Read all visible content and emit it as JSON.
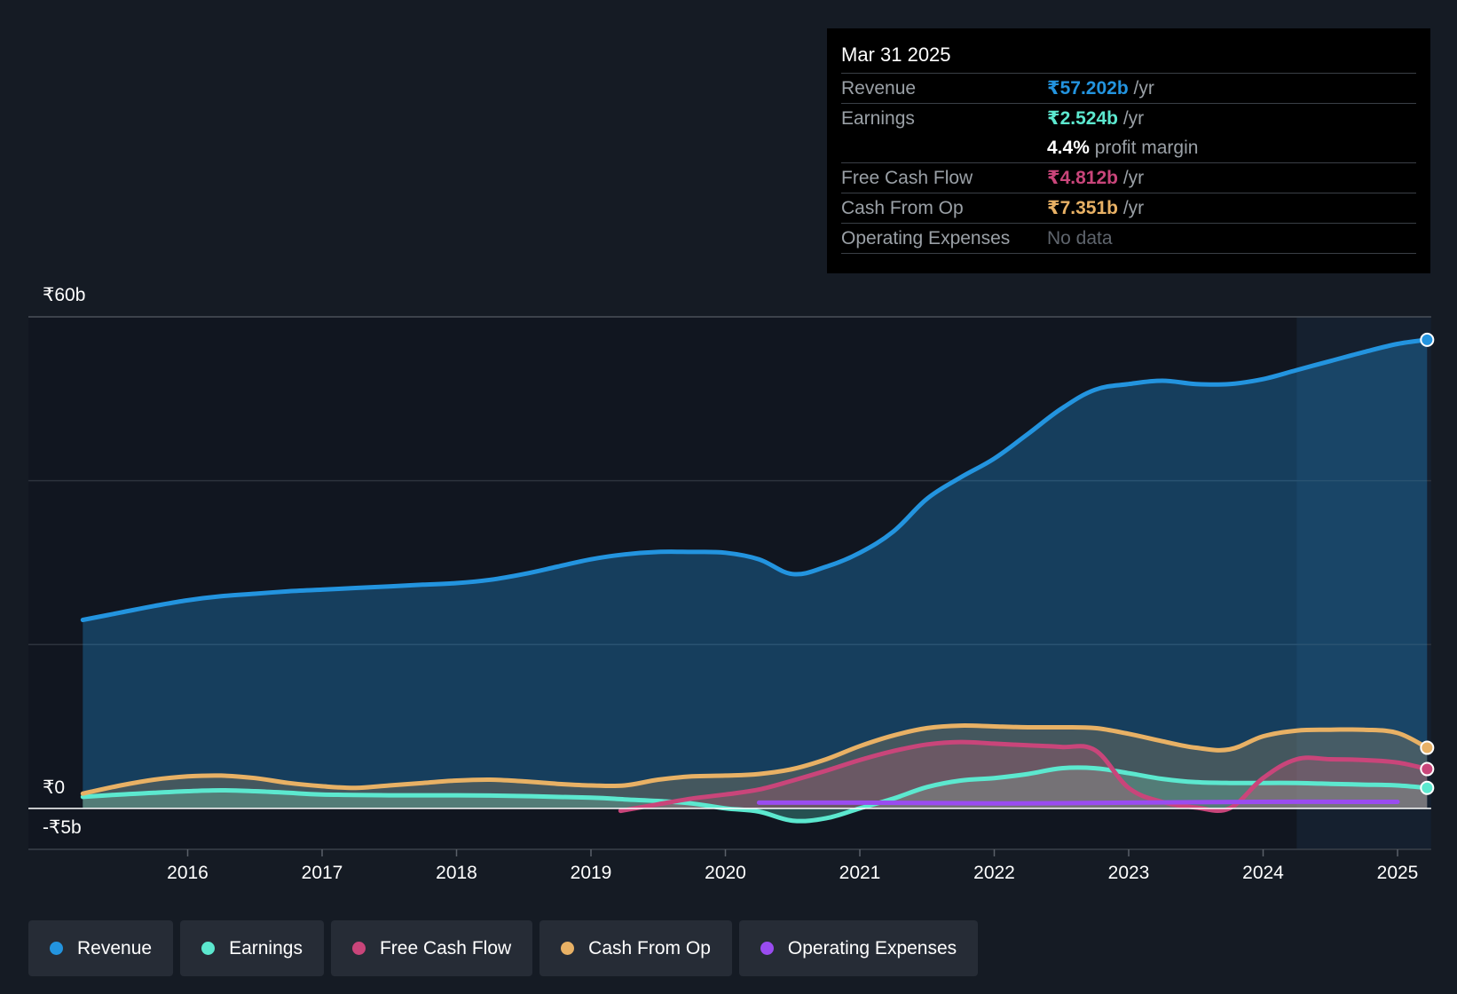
{
  "colors": {
    "revenue": "#2394df",
    "earnings": "#5ce8cf",
    "fcf": "#c9457a",
    "cfo": "#e8b165",
    "opex": "#9a4cf0",
    "grid": "#2d333d",
    "zero": "#ffffff"
  },
  "tooltip": {
    "date": "Mar 31 2025",
    "rows": [
      {
        "label": "Revenue",
        "value": "₹57.202b",
        "unit": "/yr"
      },
      {
        "label": "Earnings",
        "value": "₹2.524b",
        "unit": "/yr",
        "sub_value": "4.4%",
        "sub_text": "profit margin"
      },
      {
        "label": "Free Cash Flow",
        "value": "₹4.812b",
        "unit": "/yr"
      },
      {
        "label": "Cash From Op",
        "value": "₹7.351b",
        "unit": "/yr"
      },
      {
        "label": "Operating Expenses",
        "value": "No data",
        "unit": ""
      }
    ]
  },
  "legend": [
    {
      "label": "Revenue",
      "color": "#2394df"
    },
    {
      "label": "Earnings",
      "color": "#5ce8cf"
    },
    {
      "label": "Free Cash Flow",
      "color": "#c9457a"
    },
    {
      "label": "Cash From Op",
      "color": "#e8b165"
    },
    {
      "label": "Operating Expenses",
      "color": "#9a4cf0"
    }
  ],
  "chart_data": {
    "type": "area",
    "title": "",
    "y_axis_labels": [
      "₹60b",
      "₹0",
      "-₹5b"
    ],
    "ylim": [
      -5,
      60
    ],
    "xlim": [
      2014.8,
      2025.25
    ],
    "highlight_start": 2024.25,
    "x_ticks": [
      {
        "value": 2016,
        "label": "2016"
      },
      {
        "value": 2017,
        "label": "2017"
      },
      {
        "value": 2018,
        "label": "2018"
      },
      {
        "value": 2019,
        "label": "2019"
      },
      {
        "value": 2020,
        "label": "2020"
      },
      {
        "value": 2021,
        "label": "2021"
      },
      {
        "value": 2022,
        "label": "2022"
      },
      {
        "value": 2023,
        "label": "2023"
      },
      {
        "value": 2024,
        "label": "2024"
      },
      {
        "value": 2025,
        "label": "2025"
      }
    ],
    "series": [
      {
        "name": "Revenue",
        "key": "revenue",
        "fill": true,
        "x": [
          2015.22,
          2015.5,
          2015.75,
          2016.0,
          2016.25,
          2016.5,
          2016.75,
          2017.0,
          2017.25,
          2017.5,
          2017.75,
          2018.0,
          2018.25,
          2018.5,
          2018.75,
          2019.0,
          2019.25,
          2019.5,
          2019.75,
          2020.0,
          2020.25,
          2020.5,
          2020.75,
          2021.0,
          2021.25,
          2021.5,
          2021.75,
          2022.0,
          2022.25,
          2022.5,
          2022.75,
          2023.0,
          2023.25,
          2023.5,
          2023.75,
          2024.0,
          2024.25,
          2024.5,
          2024.75,
          2025.0,
          2025.22
        ],
        "y": [
          23.0,
          23.9,
          24.7,
          25.4,
          25.9,
          26.2,
          26.5,
          26.7,
          26.9,
          27.1,
          27.3,
          27.5,
          27.9,
          28.6,
          29.5,
          30.4,
          31.0,
          31.3,
          31.3,
          31.2,
          30.4,
          28.6,
          29.5,
          31.2,
          33.8,
          37.8,
          40.4,
          42.7,
          45.7,
          48.8,
          51.1,
          51.8,
          52.2,
          51.8,
          51.8,
          52.4,
          53.5,
          54.6,
          55.7,
          56.7,
          57.2
        ]
      },
      {
        "name": "Earnings",
        "key": "earnings",
        "fill": true,
        "x": [
          2015.22,
          2015.5,
          2015.75,
          2016.0,
          2016.25,
          2016.5,
          2016.75,
          2017.0,
          2017.5,
          2018.0,
          2018.5,
          2019.0,
          2019.25,
          2019.5,
          2019.75,
          2020.0,
          2020.25,
          2020.5,
          2020.75,
          2021.0,
          2021.25,
          2021.5,
          2021.75,
          2022.0,
          2022.25,
          2022.5,
          2022.75,
          2023.0,
          2023.25,
          2023.5,
          2023.75,
          2024.0,
          2024.25,
          2024.5,
          2024.75,
          2025.0,
          2025.22
        ],
        "y": [
          1.4,
          1.7,
          1.9,
          2.1,
          2.2,
          2.1,
          1.9,
          1.7,
          1.6,
          1.6,
          1.5,
          1.3,
          1.1,
          0.9,
          0.6,
          0.0,
          -0.4,
          -1.5,
          -1.2,
          0.0,
          1.2,
          2.6,
          3.4,
          3.7,
          4.2,
          4.9,
          4.9,
          4.3,
          3.6,
          3.2,
          3.1,
          3.1,
          3.1,
          3.0,
          2.9,
          2.8,
          2.5
        ]
      },
      {
        "name": "Free Cash Flow",
        "key": "fcf",
        "fill": true,
        "x": [
          2019.22,
          2019.5,
          2019.75,
          2020.0,
          2020.25,
          2020.5,
          2020.75,
          2021.0,
          2021.25,
          2021.5,
          2021.75,
          2022.0,
          2022.25,
          2022.5,
          2022.75,
          2023.0,
          2023.25,
          2023.5,
          2023.75,
          2024.0,
          2024.25,
          2024.5,
          2024.75,
          2025.0,
          2025.22
        ],
        "y": [
          -0.3,
          0.5,
          1.2,
          1.7,
          2.3,
          3.4,
          4.6,
          5.9,
          7.0,
          7.8,
          8.1,
          7.9,
          7.7,
          7.5,
          7.1,
          2.5,
          0.8,
          0.1,
          0.0,
          3.7,
          6.0,
          6.0,
          5.9,
          5.6,
          4.8
        ]
      },
      {
        "name": "Cash From Op",
        "key": "cfo",
        "fill": true,
        "x": [
          2015.22,
          2015.5,
          2015.75,
          2016.0,
          2016.25,
          2016.5,
          2016.75,
          2017.0,
          2017.25,
          2017.5,
          2017.75,
          2018.0,
          2018.25,
          2018.5,
          2018.75,
          2019.0,
          2019.25,
          2019.5,
          2019.75,
          2020.0,
          2020.25,
          2020.5,
          2020.75,
          2021.0,
          2021.25,
          2021.5,
          2021.75,
          2022.0,
          2022.25,
          2022.5,
          2022.75,
          2023.0,
          2023.25,
          2023.5,
          2023.75,
          2024.0,
          2024.25,
          2024.5,
          2024.75,
          2025.0,
          2025.22
        ],
        "y": [
          1.8,
          2.8,
          3.5,
          3.9,
          4.0,
          3.7,
          3.1,
          2.7,
          2.5,
          2.8,
          3.1,
          3.4,
          3.5,
          3.3,
          3.0,
          2.8,
          2.8,
          3.5,
          3.9,
          4.0,
          4.2,
          4.8,
          6.0,
          7.6,
          8.9,
          9.8,
          10.1,
          10.0,
          9.9,
          9.9,
          9.8,
          9.1,
          8.2,
          7.4,
          7.2,
          8.8,
          9.5,
          9.6,
          9.6,
          9.2,
          7.4
        ]
      },
      {
        "name": "Operating Expenses",
        "key": "opex",
        "fill": false,
        "x": [
          2020.25,
          2021.0,
          2022.0,
          2023.0,
          2024.0,
          2025.0
        ],
        "y": [
          0.7,
          0.7,
          0.6,
          0.7,
          0.8,
          0.8
        ]
      }
    ]
  }
}
